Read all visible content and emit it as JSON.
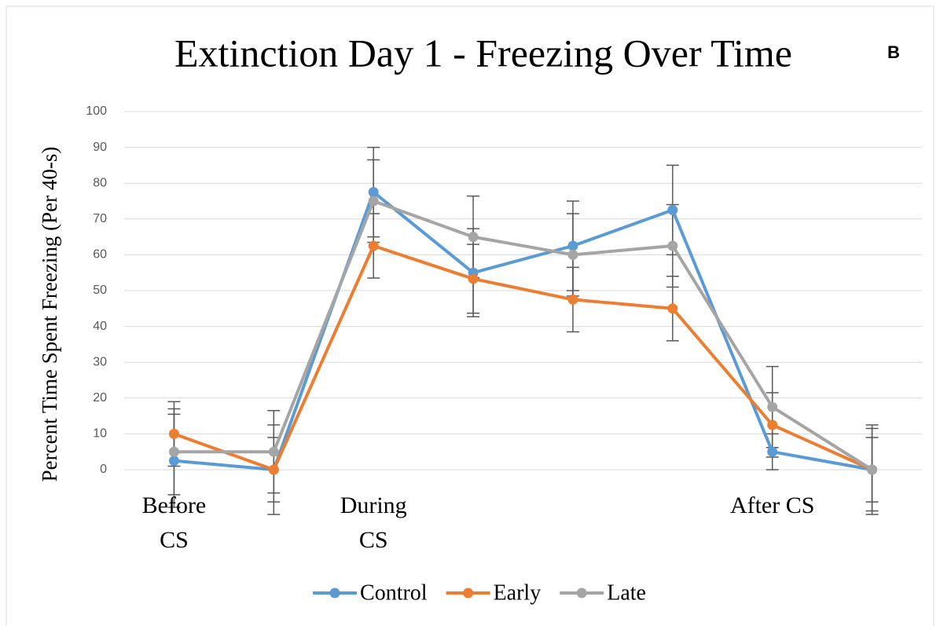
{
  "chart_data": {
    "type": "line",
    "title": "Extinction Day 1 - Freezing Over Time",
    "panel_label": "B",
    "y_label": "Percent Time Spent Freezing (Per 40-s)",
    "categories": [
      "Before CS",
      null,
      "During CS",
      null,
      null,
      null,
      "After CS",
      null
    ],
    "series": [
      {
        "name": "Control",
        "color": "#5b9bd5",
        "values": [
          2.5,
          0,
          77.5,
          55,
          62.5,
          72.5,
          5,
          0
        ],
        "errors": [
          13,
          9,
          12.5,
          12.3,
          12.5,
          12.5,
          5,
          9
        ]
      },
      {
        "name": "Early",
        "color": "#ed7d31",
        "values": [
          10,
          0,
          62.5,
          53.3,
          47.5,
          45,
          12.5,
          0
        ],
        "errors": [
          9,
          12.5,
          9,
          9.6,
          9,
          9,
          9,
          12.5
        ]
      },
      {
        "name": "Late",
        "color": "#a5a5a5",
        "values": [
          5,
          5,
          75,
          65,
          60,
          62.5,
          17.5,
          0
        ],
        "errors": [
          12,
          11.5,
          11.5,
          11.4,
          11.5,
          11.5,
          11.3,
          11.5
        ]
      }
    ],
    "ylim": [
      0,
      100
    ],
    "yticks": [
      0,
      10,
      20,
      30,
      40,
      50,
      60,
      70,
      80,
      90,
      100
    ],
    "grid": true,
    "legend": "bottom"
  }
}
